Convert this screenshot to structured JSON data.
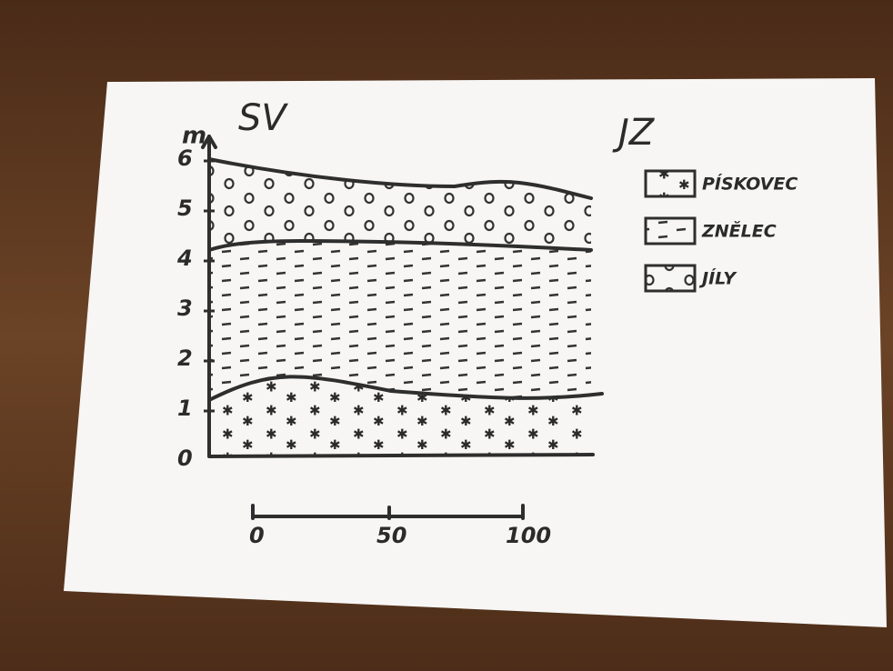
{
  "header": {
    "left": "SV",
    "right": "JZ"
  },
  "depth_axis": {
    "unit": "m",
    "ticks": [
      0,
      1,
      2,
      3,
      4,
      5,
      6
    ]
  },
  "scale_bar": {
    "ticks": [
      0,
      50,
      100
    ]
  },
  "legend": [
    {
      "label": "PÍSKOVEC"
    },
    {
      "label": "ZNĚLEC"
    },
    {
      "label": "JÍLY"
    }
  ]
}
